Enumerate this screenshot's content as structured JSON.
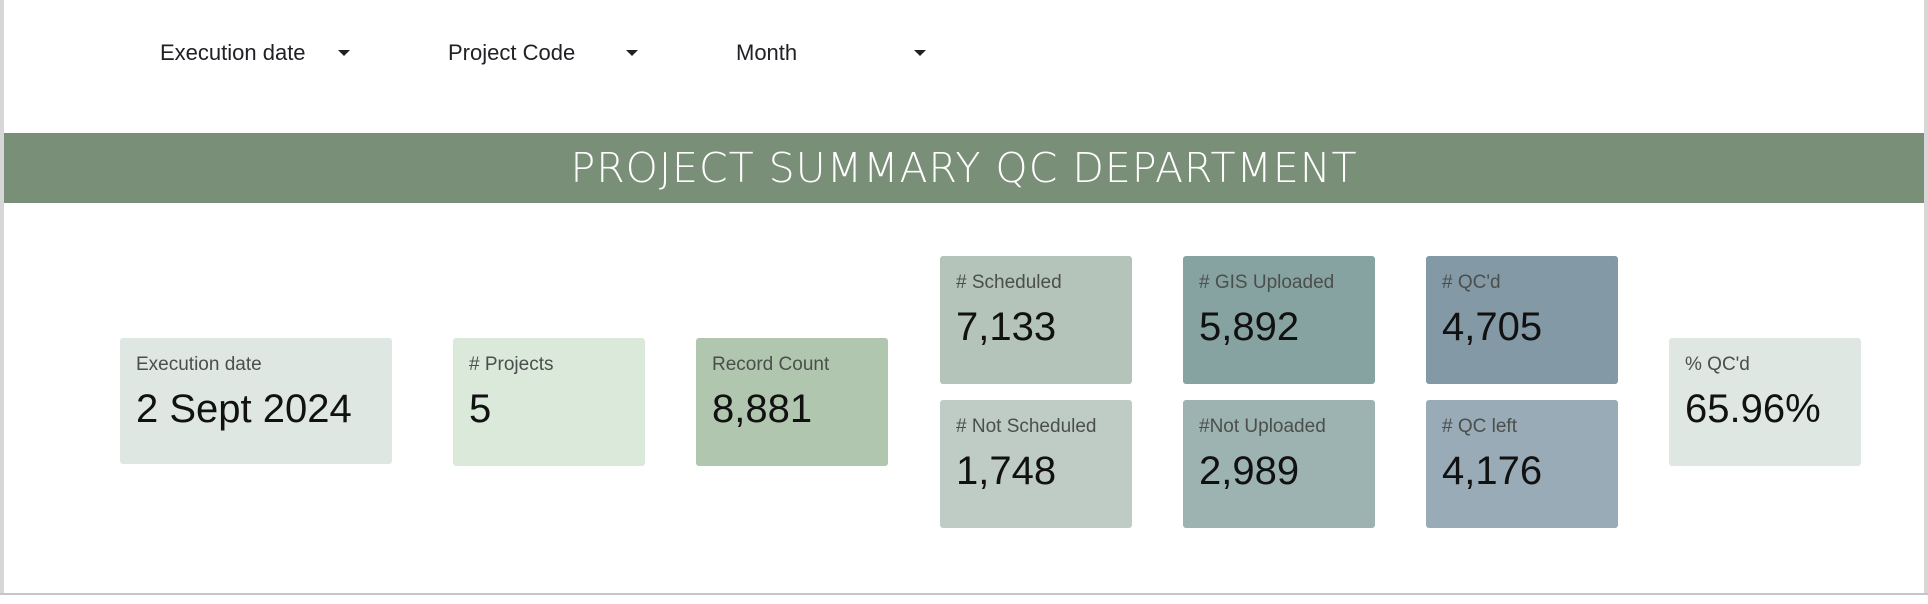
{
  "filters": [
    {
      "label": "Execution date"
    },
    {
      "label": "Project Code"
    },
    {
      "label": "Month"
    }
  ],
  "banner": {
    "title": "PROJECT SUMMARY QC DEPARTMENT",
    "color": "#7a8f78"
  },
  "scorecards": {
    "execution_date": {
      "label": "Execution date",
      "value": "2 Sept 2024",
      "color": "#dfe7e3"
    },
    "projects": {
      "label": "# Projects",
      "value": "5",
      "color": "#dbe9da"
    },
    "record_count": {
      "label": "Record Count",
      "value": "8,881",
      "color": "#b0c6ae"
    },
    "scheduled": {
      "label": "# Scheduled",
      "value": "7,133",
      "color": "#b4c4bb"
    },
    "not_scheduled": {
      "label": "# Not Scheduled",
      "value": "1,748",
      "color": "#bfccc5"
    },
    "gis_uploaded": {
      "label": "# GIS Uploaded",
      "value": "5,892",
      "color": "#87a3a1"
    },
    "not_uploaded": {
      "label": "#Not Uploaded",
      "value": "2,989",
      "color": "#9db3b1"
    },
    "qcd": {
      "label": "# QC'd",
      "value": "4,705",
      "color": "#8499a6"
    },
    "qc_left": {
      "label": "# QC left",
      "value": "4,176",
      "color": "#99abb6"
    },
    "pct_qcd": {
      "label": "% QC'd",
      "value": "65.96%",
      "color": "#dfe7e3"
    }
  }
}
